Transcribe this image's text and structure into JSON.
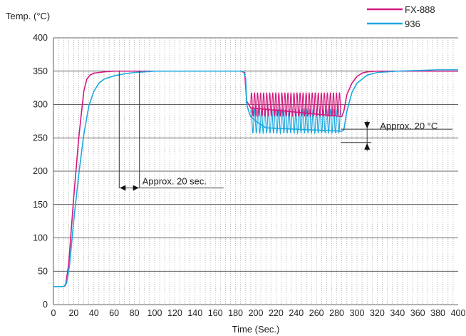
{
  "chart_data": {
    "type": "line",
    "ylabel": "Temp. (°C)",
    "xlabel": "Time (Sec.)",
    "xlim": [
      0,
      400
    ],
    "ylim": [
      0,
      400
    ],
    "xticks": [
      "0",
      "20",
      "40",
      "60",
      "80",
      "100",
      "120",
      "140",
      "160",
      "180",
      "200",
      "220",
      "240",
      "260",
      "280",
      "300",
      "320",
      "340",
      "360",
      "380",
      "400"
    ],
    "yticks": [
      "0",
      "50",
      "100",
      "150",
      "200",
      "250",
      "300",
      "350",
      "400"
    ],
    "grid": {
      "major_y": true,
      "minor_x_dotted": true
    },
    "legend_position": "top-right",
    "colors": {
      "FX-888": "#d4197f",
      "936": "#1ca8e0"
    },
    "series": [
      {
        "name": "FX-888",
        "x": [
          0,
          10,
          12,
          15,
          20,
          25,
          30,
          33,
          36,
          40,
          45,
          50,
          60,
          80,
          100,
          150,
          185,
          189,
          190,
          191,
          193,
          195,
          285,
          287,
          290,
          295,
          300,
          305,
          310,
          320,
          350,
          400
        ],
        "y": [
          27,
          27,
          29,
          60,
          160,
          250,
          320,
          338,
          344,
          347,
          348,
          349,
          350,
          350,
          350,
          350,
          350,
          348,
          325,
          305,
          300,
          295,
          282,
          290,
          315,
          332,
          342,
          347,
          349,
          350,
          350,
          350
        ]
      },
      {
        "name": "936",
        "x": [
          0,
          10,
          13,
          16,
          20,
          25,
          30,
          35,
          40,
          45,
          50,
          60,
          70,
          80,
          90,
          100,
          150,
          185,
          188,
          190,
          191,
          193,
          195,
          200,
          210,
          285,
          287,
          290,
          295,
          300,
          310,
          320,
          340,
          360,
          380,
          400
        ],
        "y": [
          27,
          27,
          32,
          60,
          125,
          195,
          255,
          298,
          320,
          332,
          338,
          343,
          346,
          348,
          349,
          350,
          350,
          350,
          349,
          340,
          300,
          290,
          282,
          275,
          265,
          260,
          262,
          290,
          318,
          332,
          344,
          348,
          350,
          351,
          352,
          352
        ]
      }
    ],
    "annotations": [
      {
        "text": "Approx. 20 sec.",
        "from_x": 65,
        "to_x": 85,
        "at_y": 175
      },
      {
        "text": "Approx. 20 °C",
        "from_y": 243,
        "to_y": 263,
        "at_x": 310
      }
    ]
  }
}
